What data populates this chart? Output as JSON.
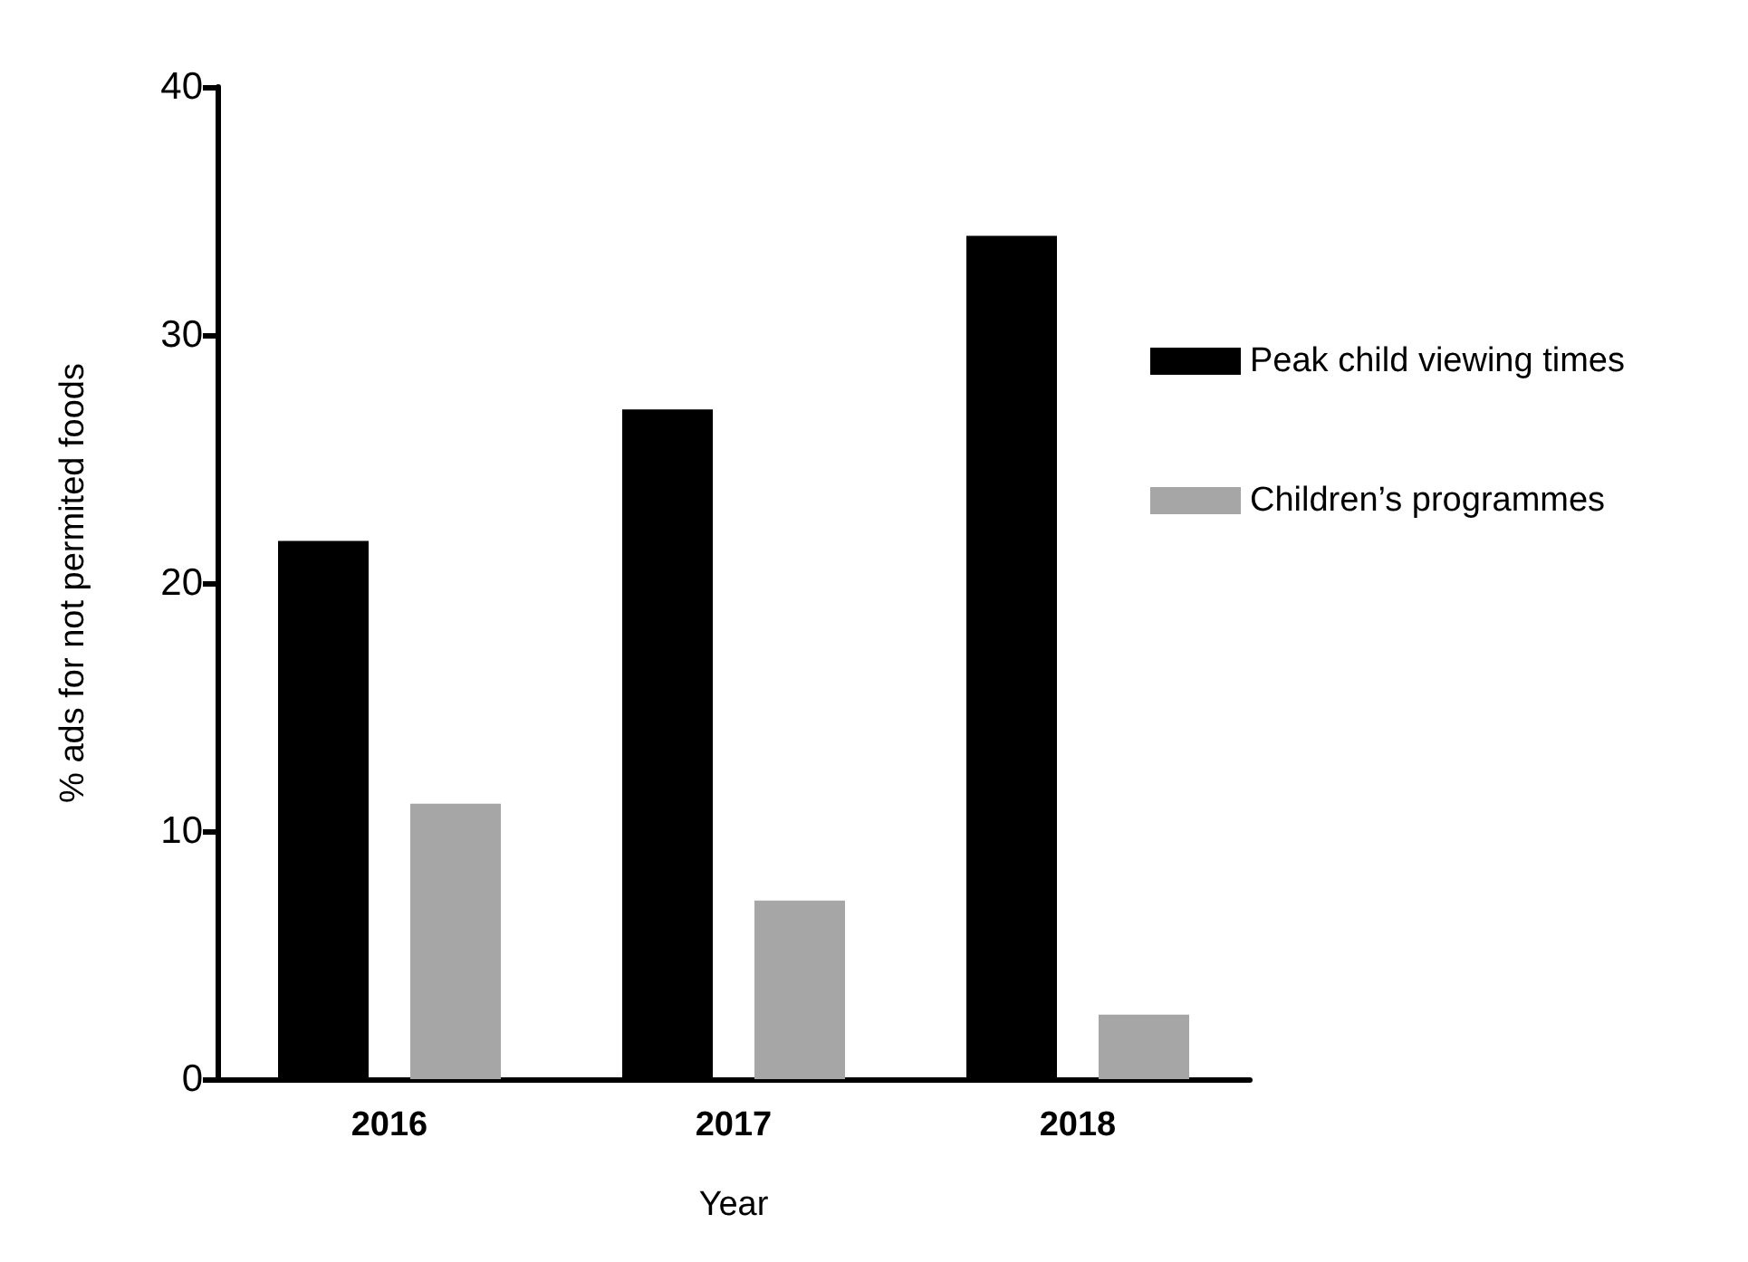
{
  "chart_data": {
    "type": "bar",
    "xlabel": "Year",
    "ylabel": "% ads for not permited foods",
    "categories": [
      "2016",
      "2017",
      "2018"
    ],
    "series": [
      {
        "name": "Peak child viewing times",
        "color": "#000000",
        "values": [
          21.7,
          27.0,
          34.0
        ]
      },
      {
        "name": "Children’s programmes",
        "color": "#a6a6a6",
        "values": [
          11.1,
          7.2,
          2.6
        ]
      }
    ],
    "ylim": [
      0,
      40
    ],
    "yticks": [
      0,
      10,
      20,
      30,
      40
    ],
    "grid": false,
    "legend": "right"
  }
}
